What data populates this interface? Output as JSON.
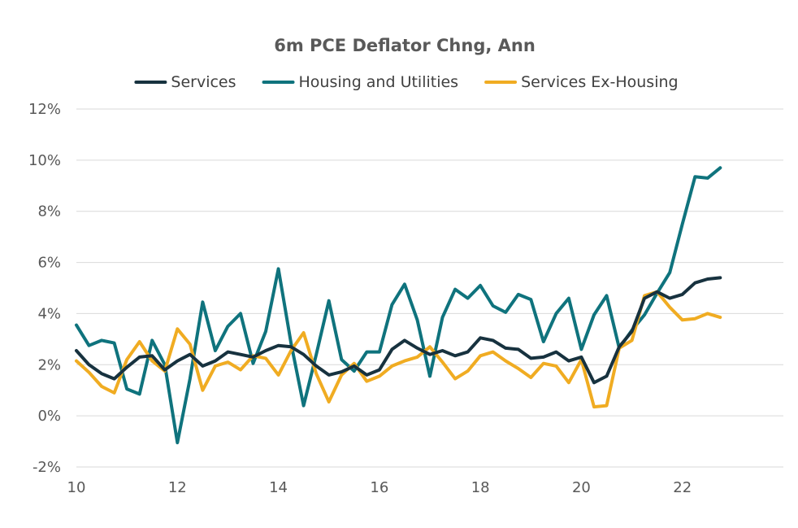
{
  "chart_data": {
    "type": "line",
    "title": "6m PCE Deflator Chng, Ann",
    "xlabel": "",
    "ylabel": "",
    "xlim": [
      10,
      24
    ],
    "ylim": [
      -2,
      12
    ],
    "x_ticks": [
      10,
      12,
      14,
      16,
      18,
      20,
      22
    ],
    "x_tick_labels": [
      "10",
      "12",
      "14",
      "16",
      "18",
      "20",
      "22"
    ],
    "y_ticks": [
      -2,
      0,
      2,
      4,
      6,
      8,
      10,
      12
    ],
    "y_tick_labels": [
      "-2%",
      "0%",
      "2%",
      "4%",
      "6%",
      "8%",
      "10%",
      "12%"
    ],
    "grid": "horizontal",
    "legend_position": "top",
    "x": [
      10.0,
      10.25,
      10.5,
      10.75,
      11.0,
      11.25,
      11.5,
      11.75,
      12.0,
      12.25,
      12.5,
      12.75,
      13.0,
      13.25,
      13.5,
      13.75,
      14.0,
      14.25,
      14.5,
      14.75,
      15.0,
      15.25,
      15.5,
      15.75,
      16.0,
      16.25,
      16.5,
      16.75,
      17.0,
      17.25,
      17.5,
      17.75,
      18.0,
      18.25,
      18.5,
      18.75,
      19.0,
      19.25,
      19.5,
      19.75,
      20.0,
      20.25,
      20.5,
      20.75,
      21.0,
      21.25,
      21.5,
      21.75,
      22.0,
      22.25,
      22.5,
      22.75
    ],
    "series": [
      {
        "name": "Services",
        "color": "#17323f",
        "values": [
          2.55,
          2.0,
          1.65,
          1.45,
          1.9,
          2.3,
          2.35,
          1.8,
          2.15,
          2.4,
          1.95,
          2.15,
          2.5,
          2.4,
          2.3,
          2.55,
          2.75,
          2.7,
          2.4,
          1.95,
          1.6,
          1.72,
          1.95,
          1.6,
          1.8,
          2.6,
          2.95,
          2.65,
          2.4,
          2.55,
          2.35,
          2.5,
          3.05,
          2.95,
          2.65,
          2.6,
          2.25,
          2.3,
          2.5,
          2.15,
          2.3,
          1.3,
          1.55,
          2.7,
          3.3,
          4.6,
          4.85,
          4.6,
          4.75,
          5.2,
          5.35,
          5.4
        ]
      },
      {
        "name": "Housing and Utilities",
        "color": "#0f737d",
        "values": [
          3.55,
          2.75,
          2.95,
          2.85,
          1.05,
          0.85,
          2.95,
          2.0,
          -1.05,
          1.45,
          4.45,
          2.55,
          3.5,
          4.0,
          2.05,
          3.3,
          5.75,
          2.85,
          0.4,
          2.4,
          4.5,
          2.2,
          1.75,
          2.5,
          2.5,
          4.35,
          5.15,
          3.75,
          1.55,
          3.85,
          4.95,
          4.6,
          5.1,
          4.3,
          4.05,
          4.75,
          4.55,
          2.9,
          4.0,
          4.6,
          2.6,
          3.95,
          4.7,
          2.65,
          3.35,
          3.95,
          4.8,
          5.6,
          7.5,
          9.35,
          9.3,
          9.7
        ]
      },
      {
        "name": "Services Ex-Housing",
        "color": "#f0ac22",
        "values": [
          2.15,
          1.7,
          1.15,
          0.9,
          2.2,
          2.9,
          2.15,
          1.75,
          3.4,
          2.8,
          1.0,
          1.95,
          2.1,
          1.8,
          2.35,
          2.25,
          1.6,
          2.55,
          3.25,
          1.65,
          0.55,
          1.6,
          2.05,
          1.35,
          1.55,
          1.95,
          2.15,
          2.3,
          2.7,
          2.1,
          1.45,
          1.75,
          2.35,
          2.5,
          2.15,
          1.85,
          1.5,
          2.05,
          1.95,
          1.3,
          2.2,
          0.35,
          0.4,
          2.65,
          2.95,
          4.7,
          4.85,
          4.25,
          3.75,
          3.8,
          4.0,
          3.85
        ]
      }
    ]
  }
}
